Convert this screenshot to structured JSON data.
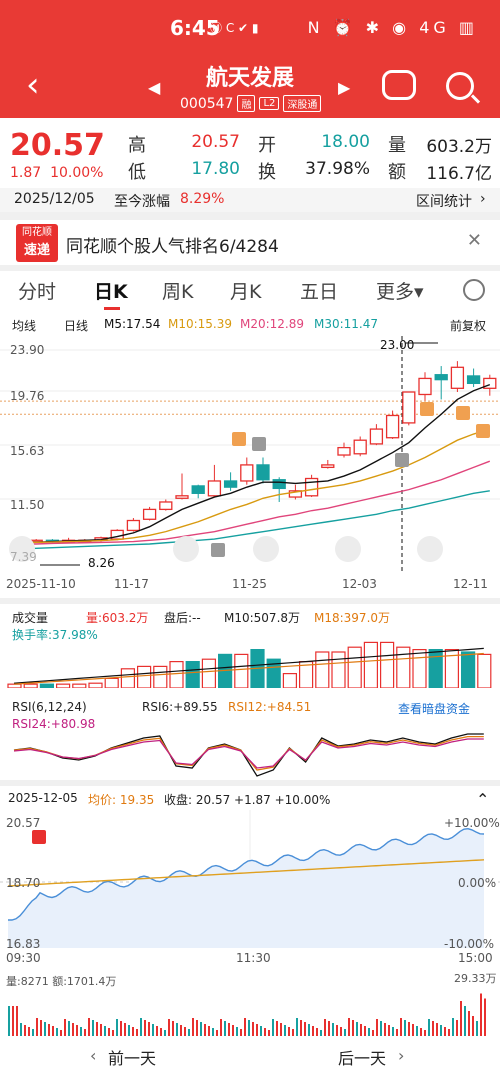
{
  "status": {
    "time": "6:45",
    "notif": "Ⓜ C ✔ ▮",
    "icons": "N ⏰ ✱ ◉ 4G ▥"
  },
  "header": {
    "title": "航天发展",
    "code": "000547",
    "tags": [
      "融",
      "L2",
      "深股通"
    ]
  },
  "quote": {
    "price": "20.57",
    "change": "1.87",
    "change_pct": "10.00%",
    "high_label": "高",
    "high": "20.57",
    "open_label": "开",
    "open": "18.00",
    "vol_label": "量",
    "volume": "603.2万",
    "low_label": "低",
    "low": "17.80",
    "turn_label": "换",
    "turnover": "37.98%",
    "amt_label": "额",
    "amount": "116.7亿",
    "date": "2025/12/05",
    "since_label": "至今涨幅",
    "since_pct": "8.29%",
    "interval_label": "区间统计"
  },
  "banner": {
    "logo_top": "同花顺",
    "logo_bottom": "速递",
    "text": "同花顺个股人气排名6/4284",
    "close": "✕"
  },
  "tabs": [
    "分时",
    "日K",
    "周K",
    "月K",
    "五日",
    "更多▾"
  ],
  "kline": {
    "ma_label": "均线",
    "period": "日线",
    "m5": "M5:17.54",
    "m10": "M10:15.39",
    "m20": "M20:12.89",
    "m30": "M30:11.47",
    "adj": "前复权",
    "y_ticks": [
      "23.90",
      "19.76",
      "15.63",
      "11.50",
      "7.39"
    ],
    "x_ticks": [
      "2025-11-10",
      "11-17",
      "11-25",
      "12-03",
      "12-11"
    ],
    "max_label": "23.00",
    "min_label": "8.26"
  },
  "volume": {
    "label": "成交量",
    "v": "量:603.2万",
    "after": "盘后:--",
    "m10": "M10:507.8万",
    "m18": "M18:397.0万",
    "turn": "换手率:37.98%"
  },
  "rsi": {
    "label": "RSI(6,12,24)",
    "rsi6": "RSI6:+89.55",
    "rsi12": "RSI12:+84.51",
    "rsi24": "RSI24:+80.98",
    "link": "查看暗盘资金"
  },
  "intraday": {
    "date": "2025-12-05",
    "avg": "均价: 19.35",
    "close": "收盘: 20.57 +1.87 +10.00%",
    "y_top": "20.57",
    "y_mid": "18.70",
    "y_bot": "16.83",
    "p_top": "+10.00%",
    "p_mid": "0.00%",
    "p_bot": "-10.00%",
    "t_start": "09:30",
    "t_mid": "11:30",
    "t_end": "15:00",
    "vol_info": "量:8271  额:1701.4万",
    "vol_max": "29.33万"
  },
  "footer": {
    "prev": "前一天",
    "next": "后一天"
  },
  "colors": {
    "up": "#e8302e",
    "down": "#16a0a0",
    "brand": "#e83a35"
  }
}
